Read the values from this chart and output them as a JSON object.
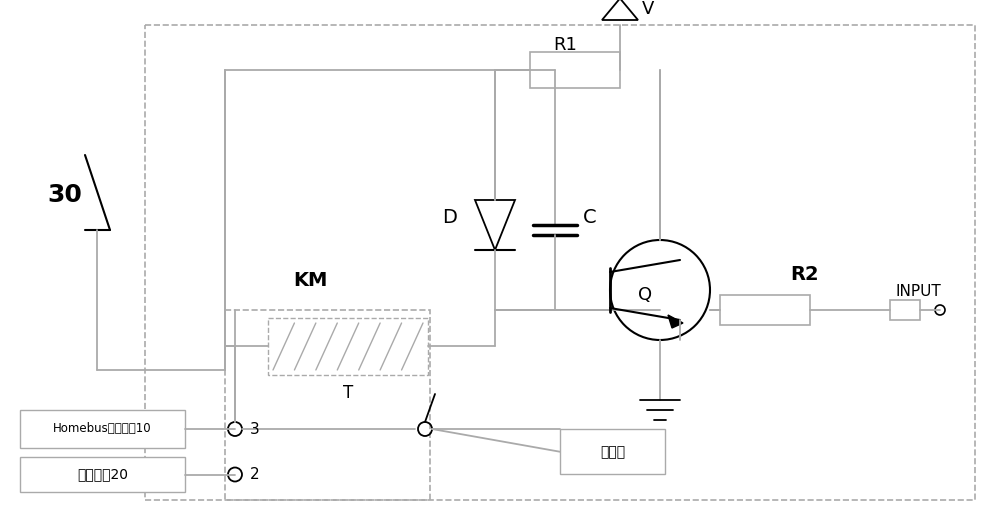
{
  "bg": "#ffffff",
  "lc": "#aaaaaa",
  "bk": "#000000",
  "lw": 1.3,
  "fig_w": 10.0,
  "fig_h": 5.19,
  "dpi": 100,
  "labels": {
    "30": "30",
    "KM": "KM",
    "T": "T",
    "D": "D",
    "C": "C",
    "R1": "R1",
    "R2": "R2",
    "V": "V",
    "Q": "Q",
    "INPUT": "INPUT",
    "homebus": "Homebus供电模塃10",
    "battery": "电池模块20",
    "wire_ctrl": "线控器",
    "node3": "3",
    "node2": "2"
  }
}
